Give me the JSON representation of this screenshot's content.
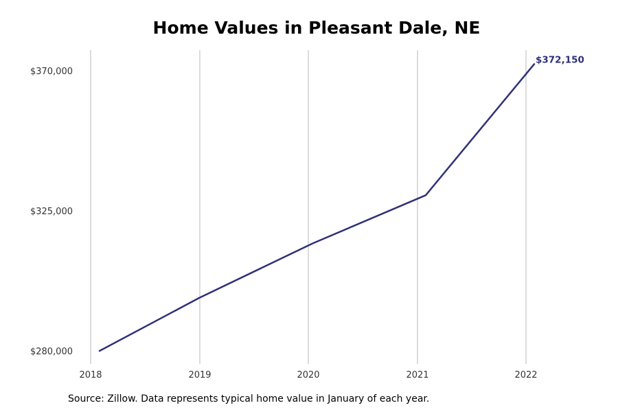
{
  "chart_data": {
    "type": "line",
    "title": "Home Values in Pleasant Dale, NE",
    "xlabel": "",
    "ylabel": "",
    "x": [
      "2018",
      "2019",
      "2020",
      "2021",
      "2022"
    ],
    "x_ticks": [
      "2018",
      "2019",
      "2020",
      "2021",
      "2022"
    ],
    "y_ticks": [
      280000,
      325000,
      370000
    ],
    "y_tick_labels": [
      "$280,000",
      "$325,000",
      "$370,000"
    ],
    "ylim": [
      277000,
      377000
    ],
    "series": [
      {
        "values": [
          280000,
          297000,
          314500,
          330000,
          372150
        ],
        "color": "#2e3078"
      }
    ],
    "annotation": {
      "text": "$372,150",
      "color": "#2e3078"
    },
    "grid": "vertical",
    "legend": "none",
    "source": "Source: Zillow. Data represents typical home value in January of each year."
  }
}
